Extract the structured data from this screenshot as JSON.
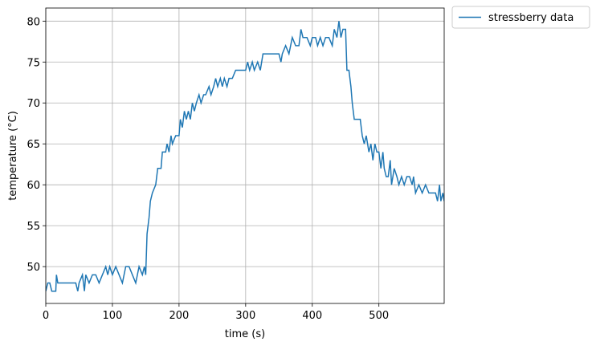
{
  "chart_data": {
    "type": "line",
    "x_label": "time (s)",
    "y_label": "temperature (°C)",
    "x": [
      0,
      3,
      6,
      9,
      15,
      16,
      18,
      30,
      45,
      48,
      50,
      55,
      58,
      60,
      65,
      70,
      75,
      80,
      85,
      90,
      93,
      96,
      100,
      105,
      110,
      115,
      120,
      125,
      130,
      135,
      140,
      145,
      148,
      150,
      152,
      155,
      157,
      160,
      165,
      168,
      173,
      175,
      180,
      182,
      185,
      188,
      190,
      195,
      200,
      202,
      205,
      208,
      211,
      214,
      217,
      220,
      223,
      226,
      230,
      233,
      237,
      240,
      245,
      248,
      252,
      255,
      258,
      262,
      265,
      268,
      272,
      275,
      280,
      285,
      295,
      300,
      303,
      306,
      310,
      313,
      318,
      322,
      326,
      335,
      340,
      345,
      350,
      353,
      355,
      360,
      365,
      370,
      375,
      380,
      383,
      386,
      392,
      397,
      400,
      405,
      408,
      412,
      416,
      420,
      425,
      430,
      433,
      437,
      440,
      443,
      446,
      450,
      452,
      455,
      458,
      460,
      463,
      468,
      472,
      475,
      478,
      481,
      485,
      488,
      491,
      494,
      497,
      500,
      503,
      506,
      508,
      511,
      514,
      517,
      519,
      523,
      527,
      530,
      534,
      538,
      542,
      546,
      550,
      552,
      555,
      560,
      565,
      570,
      575,
      580,
      585,
      588,
      591,
      593,
      596,
      598
    ],
    "series": [
      {
        "name": "stressberry data",
        "color": "#1f77b4",
        "values": [
          47,
          48,
          48,
          47,
          47,
          49,
          48,
          48,
          48,
          47,
          48,
          49,
          47,
          49,
          48,
          49,
          49,
          48,
          49,
          50,
          49,
          50,
          49,
          50,
          49,
          48,
          50,
          50,
          49,
          48,
          50,
          49,
          50,
          49,
          54,
          56,
          58,
          59,
          60,
          62,
          62,
          64,
          64,
          65,
          64,
          66,
          65,
          66,
          66,
          68,
          67,
          69,
          68,
          69,
          68,
          70,
          69,
          70,
          71,
          70,
          71,
          71,
          72,
          71,
          72,
          73,
          72,
          73,
          72,
          73,
          72,
          73,
          73,
          74,
          74,
          74,
          75,
          74,
          75,
          74,
          75,
          74,
          76,
          76,
          76,
          76,
          76,
          75,
          76,
          77,
          76,
          78,
          77,
          77,
          79,
          78,
          78,
          77,
          78,
          78,
          77,
          78,
          77,
          78,
          78,
          77,
          79,
          78,
          80,
          78,
          79,
          79,
          74,
          74,
          72,
          70,
          68,
          68,
          68,
          66,
          65,
          66,
          64,
          65,
          63,
          65,
          64,
          64,
          62,
          64,
          62,
          61,
          61,
          63,
          60,
          62,
          61,
          60,
          61,
          60,
          61,
          61,
          60,
          61,
          59,
          60,
          59,
          60,
          59,
          59,
          59,
          58,
          60,
          58,
          59,
          58
        ]
      }
    ],
    "xlim": [
      0,
      598
    ],
    "ylim": [
      45.5,
      81.6
    ],
    "xticks": [
      0,
      100,
      200,
      300,
      400,
      500
    ],
    "yticks": [
      50,
      55,
      60,
      65,
      70,
      75,
      80
    ],
    "grid": true,
    "legend": "outside-upper-right"
  }
}
